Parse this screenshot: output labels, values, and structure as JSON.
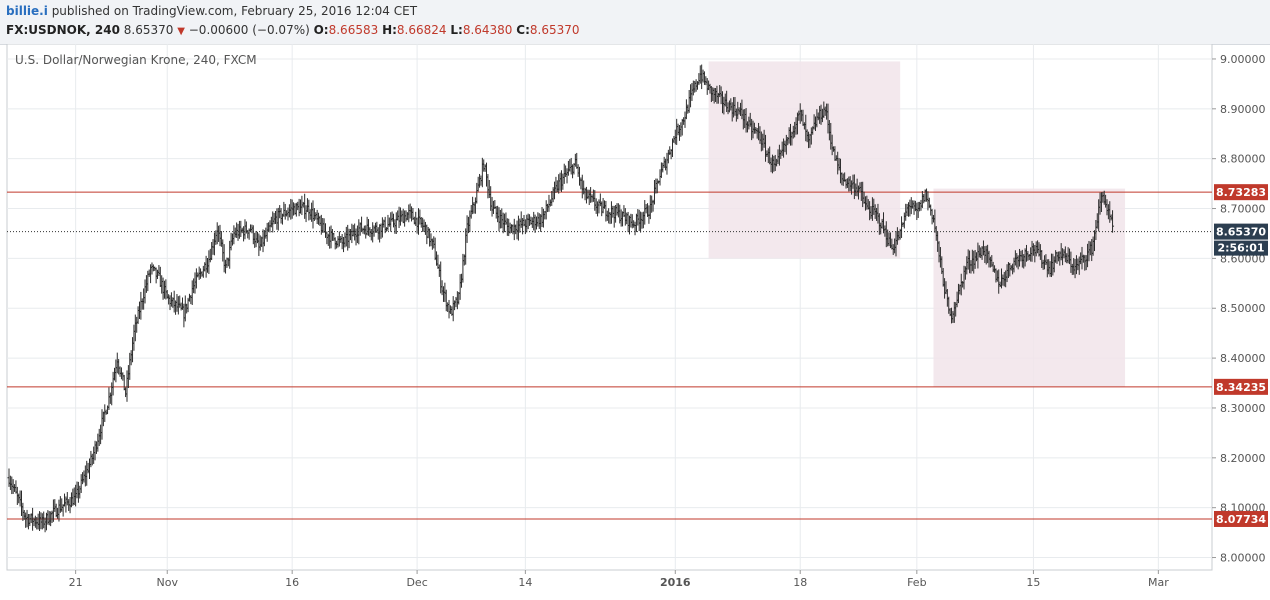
{
  "header": {
    "author": "billie.i",
    "published_text": "published on TradingView.com, February 25, 2016 12:04 CET",
    "symbol_interval": "FX:USDNOK, 240",
    "last_price": "8.65370",
    "direction_glyph": "▼",
    "change_text": "−0.00600 (−0.07%)",
    "open_label": "O:",
    "open_value": "8.66583",
    "high_label": "H:",
    "high_value": "8.66824",
    "low_label": "L:",
    "low_value": "8.64380",
    "close_label": "C:",
    "close_value": "8.65370"
  },
  "chart_title": "U.S. Dollar/Norwegian Krone, 240, FXCM",
  "colors": {
    "bar": "#2b2b2b",
    "level_line": "#c0392b",
    "price_line": "#333333",
    "box_fill": "#f1e4ea",
    "grid": "#e8ebee",
    "current_label_bg": "#2c3e50"
  },
  "chart_data": {
    "type": "ohlc",
    "instrument": "FX:USDNOK",
    "interval": "240",
    "ylim": [
      7.975,
      9.03
    ],
    "y_ticks": [
      "9.00000",
      "8.90000",
      "8.80000",
      "8.70000",
      "8.60000",
      "8.50000",
      "8.40000",
      "8.30000",
      "8.20000",
      "8.10000",
      "8.00000"
    ],
    "x_ticks": [
      {
        "label": "21",
        "day": 8
      },
      {
        "label": "Nov",
        "day": 19
      },
      {
        "label": "16",
        "day": 34
      },
      {
        "label": "Dec",
        "day": 49
      },
      {
        "label": "14",
        "day": 62
      },
      {
        "label": "2016",
        "day": 80
      },
      {
        "label": "18",
        "day": 95
      },
      {
        "label": "Feb",
        "day": 109
      },
      {
        "label": "15",
        "day": 123
      },
      {
        "label": "Mar",
        "day": 138
      }
    ],
    "x_range_days": [
      0,
      143
    ],
    "bars_per_day": 6,
    "close_path": [
      [
        0,
        8.16
      ],
      [
        2,
        8.08
      ],
      [
        4,
        8.07
      ],
      [
        6,
        8.1
      ],
      [
        8,
        8.12
      ],
      [
        10,
        8.2
      ],
      [
        12,
        8.32
      ],
      [
        13,
        8.4
      ],
      [
        14,
        8.33
      ],
      [
        15,
        8.45
      ],
      [
        16,
        8.52
      ],
      [
        17,
        8.58
      ],
      [
        18,
        8.56
      ],
      [
        19,
        8.52
      ],
      [
        21,
        8.49
      ],
      [
        22,
        8.54
      ],
      [
        24,
        8.6
      ],
      [
        25,
        8.66
      ],
      [
        26,
        8.58
      ],
      [
        27,
        8.65
      ],
      [
        29,
        8.66
      ],
      [
        30,
        8.62
      ],
      [
        32,
        8.68
      ],
      [
        34,
        8.7
      ],
      [
        36,
        8.7
      ],
      [
        38,
        8.65
      ],
      [
        40,
        8.63
      ],
      [
        42,
        8.66
      ],
      [
        44,
        8.66
      ],
      [
        46,
        8.67
      ],
      [
        48,
        8.69
      ],
      [
        50,
        8.66
      ],
      [
        51,
        8.62
      ],
      [
        52,
        8.54
      ],
      [
        53,
        8.49
      ],
      [
        54,
        8.52
      ],
      [
        55,
        8.66
      ],
      [
        56,
        8.72
      ],
      [
        57,
        8.79
      ],
      [
        58,
        8.7
      ],
      [
        60,
        8.66
      ],
      [
        62,
        8.67
      ],
      [
        64,
        8.68
      ],
      [
        66,
        8.75
      ],
      [
        68,
        8.79
      ],
      [
        69,
        8.73
      ],
      [
        71,
        8.7
      ],
      [
        73,
        8.69
      ],
      [
        75,
        8.67
      ],
      [
        77,
        8.7
      ],
      [
        78,
        8.76
      ],
      [
        79,
        8.8
      ],
      [
        80,
        8.85
      ],
      [
        81,
        8.88
      ],
      [
        82,
        8.93
      ],
      [
        83,
        8.97
      ],
      [
        84,
        8.94
      ],
      [
        86,
        8.91
      ],
      [
        88,
        8.89
      ],
      [
        89,
        8.86
      ],
      [
        90,
        8.85
      ],
      [
        91,
        8.81
      ],
      [
        92,
        8.78
      ],
      [
        93,
        8.82
      ],
      [
        94,
        8.86
      ],
      [
        95,
        8.89
      ],
      [
        96,
        8.83
      ],
      [
        97,
        8.88
      ],
      [
        98,
        8.9
      ],
      [
        99,
        8.81
      ],
      [
        100,
        8.76
      ],
      [
        102,
        8.74
      ],
      [
        103,
        8.7
      ],
      [
        104,
        8.69
      ],
      [
        105,
        8.66
      ],
      [
        106,
        8.62
      ],
      [
        107,
        8.65
      ],
      [
        108,
        8.71
      ],
      [
        109,
        8.69
      ],
      [
        110,
        8.73
      ],
      [
        111,
        8.68
      ],
      [
        112,
        8.57
      ],
      [
        113,
        8.48
      ],
      [
        114,
        8.53
      ],
      [
        115,
        8.59
      ],
      [
        116,
        8.6
      ],
      [
        117,
        8.62
      ],
      [
        118,
        8.58
      ],
      [
        119,
        8.55
      ],
      [
        120,
        8.58
      ],
      [
        121,
        8.6
      ],
      [
        122,
        8.61
      ],
      [
        123,
        8.62
      ],
      [
        124,
        8.6
      ],
      [
        125,
        8.58
      ],
      [
        126,
        8.61
      ],
      [
        127,
        8.6
      ],
      [
        128,
        8.58
      ],
      [
        129,
        8.6
      ],
      [
        130,
        8.62
      ],
      [
        131,
        8.71
      ],
      [
        131.4,
        8.73
      ],
      [
        131.8,
        8.7
      ],
      [
        132.6,
        8.655
      ]
    ],
    "horizontal_levels": [
      {
        "value": 8.73283,
        "label": "8.73283"
      },
      {
        "value": 8.34235,
        "label": "8.34235"
      },
      {
        "value": 8.07734,
        "label": "8.07734"
      }
    ],
    "current_price": {
      "value": 8.6537,
      "label": "8.65370",
      "countdown": "2:56:01"
    },
    "rectangles": [
      {
        "day_from": 84,
        "day_to": 107,
        "price_from": 8.6,
        "price_to": 8.995
      },
      {
        "day_from": 111,
        "day_to": 134,
        "price_from": 8.342,
        "price_to": 8.74
      }
    ]
  }
}
